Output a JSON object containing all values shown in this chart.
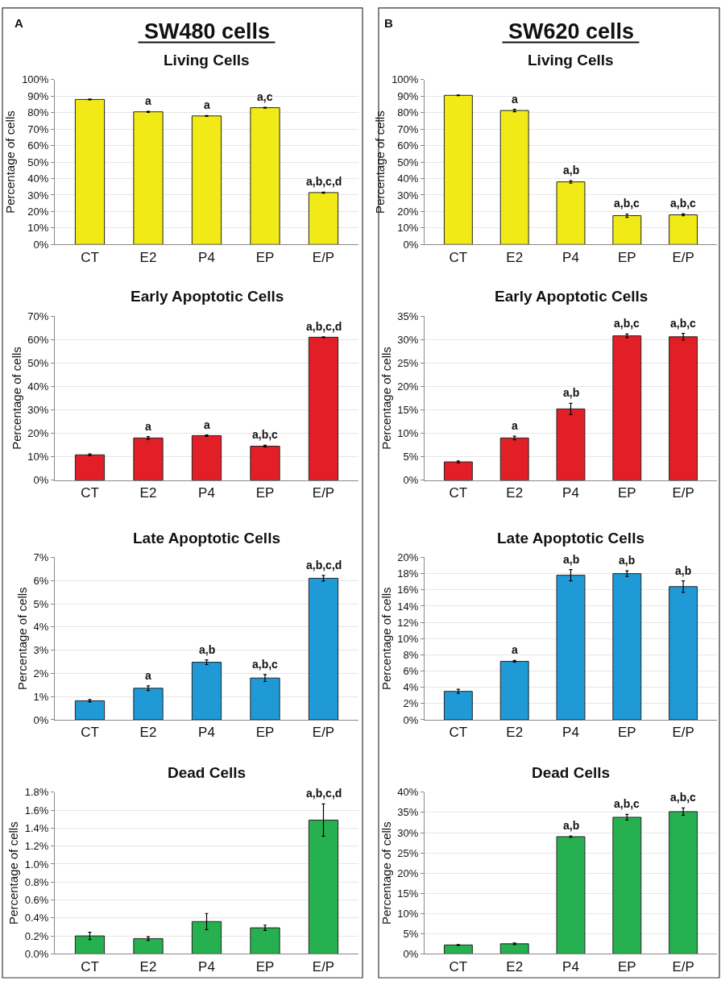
{
  "chart_data": [
    {
      "type": "bar",
      "title": "Living Cells",
      "ylabel": "Percentage of cells",
      "annotations": [
        "A",
        "SW480 cells",
        {
          "text": "a",
          "x": "E2",
          "y": 80.8
        },
        {
          "text": "a",
          "x": "P4",
          "y": 78.3
        },
        {
          "text": "a,c",
          "x": "EP",
          "y": 83.3
        },
        {
          "text": "a,b,c,d",
          "x": "E/P",
          "y": 31.8
        }
      ],
      "categories": [
        "CT",
        "E2",
        "P4",
        "EP",
        "E/P"
      ],
      "values": [
        88,
        80.5,
        78,
        83,
        31.5
      ],
      "errors": [
        0.3,
        0.3,
        0.3,
        0.3,
        0.3
      ],
      "color": "#f2ea16",
      "ylim": [
        0,
        100
      ],
      "yticks": [
        {
          "value": 0,
          "label": "0%"
        },
        {
          "value": 10,
          "label": "10%"
        },
        {
          "value": 20,
          "label": "20%"
        },
        {
          "value": 30,
          "label": "30%"
        },
        {
          "value": 40,
          "label": "40%"
        },
        {
          "value": 50,
          "label": "50%"
        },
        {
          "value": 60,
          "label": "60%"
        },
        {
          "value": 70,
          "label": "70%"
        },
        {
          "value": 80,
          "label": "80%"
        },
        {
          "value": 90,
          "label": "90%"
        },
        {
          "value": 100,
          "label": "100%"
        }
      ],
      "grid": "y"
    },
    {
      "type": "bar",
      "title": "Early Apoptotic Cells",
      "ylabel": "Percentage of cells",
      "annotations": [
        {
          "text": "a",
          "x": "E2",
          "y": 18.6
        },
        {
          "text": "a",
          "x": "P4",
          "y": 19.3
        },
        {
          "text": "a,b,c",
          "x": "EP",
          "y": 14.9
        },
        {
          "text": "a,b,c,d",
          "x": "E/P",
          "y": 61.2
        }
      ],
      "categories": [
        "CT",
        "E2",
        "P4",
        "EP",
        "E/P"
      ],
      "values": [
        10.8,
        18,
        19,
        14.5,
        61
      ],
      "errors": [
        0.4,
        0.6,
        0.3,
        0.4,
        0.2
      ],
      "color": "#e21f26",
      "ylim": [
        0,
        70
      ],
      "yticks": [
        {
          "value": 0,
          "label": "0%"
        },
        {
          "value": 10,
          "label": "10%"
        },
        {
          "value": 20,
          "label": "20%"
        },
        {
          "value": 30,
          "label": "30%"
        },
        {
          "value": 40,
          "label": "40%"
        },
        {
          "value": 50,
          "label": "50%"
        },
        {
          "value": 60,
          "label": "60%"
        },
        {
          "value": 70,
          "label": "70%"
        }
      ],
      "grid": "y"
    },
    {
      "type": "bar",
      "title": "Late Apoptotic Cells",
      "ylabel": "Percentage of cells",
      "annotations": [
        {
          "text": "a",
          "x": "E2",
          "y": 1.46
        },
        {
          "text": "a,b",
          "x": "P4",
          "y": 2.58
        },
        {
          "text": "a,b,c",
          "x": "EP",
          "y": 1.95
        },
        {
          "text": "a,b,c,d",
          "x": "E/P",
          "y": 6.22
        }
      ],
      "categories": [
        "CT",
        "E2",
        "P4",
        "EP",
        "E/P"
      ],
      "values": [
        0.82,
        1.36,
        2.48,
        1.8,
        6.1
      ],
      "errors": [
        0.05,
        0.1,
        0.1,
        0.15,
        0.12
      ],
      "color": "#1f9ad6",
      "ylim": [
        0,
        7
      ],
      "yticks": [
        {
          "value": 0,
          "label": "0%"
        },
        {
          "value": 1,
          "label": "1%"
        },
        {
          "value": 2,
          "label": "2%"
        },
        {
          "value": 3,
          "label": "3%"
        },
        {
          "value": 4,
          "label": "4%"
        },
        {
          "value": 5,
          "label": "5%"
        },
        {
          "value": 6,
          "label": "6%"
        },
        {
          "value": 7,
          "label": "7%"
        }
      ],
      "grid": "y"
    },
    {
      "type": "bar",
      "title": "Dead Cells",
      "ylabel": "Percentage of cells",
      "annotations": [
        {
          "text": "a,b,c,d",
          "x": "E/P",
          "y": 1.67
        }
      ],
      "categories": [
        "CT",
        "E2",
        "P4",
        "EP",
        "E/P"
      ],
      "values": [
        0.2,
        0.17,
        0.36,
        0.29,
        1.49
      ],
      "errors": [
        0.04,
        0.02,
        0.09,
        0.03,
        0.18
      ],
      "color": "#26b04f",
      "ylim": [
        0,
        1.8
      ],
      "yticks": [
        {
          "value": 0,
          "label": "0.0%"
        },
        {
          "value": 0.2,
          "label": "0.2%"
        },
        {
          "value": 0.4,
          "label": "0.4%"
        },
        {
          "value": 0.6,
          "label": "0.6%"
        },
        {
          "value": 0.8,
          "label": "0.8%"
        },
        {
          "value": 1.0,
          "label": "1.0%"
        },
        {
          "value": 1.2,
          "label": "1.2%"
        },
        {
          "value": 1.4,
          "label": "1.4%"
        },
        {
          "value": 1.6,
          "label": "1.6%"
        },
        {
          "value": 1.8,
          "label": "1.8%"
        }
      ],
      "grid": "y"
    },
    {
      "type": "bar",
      "title": "Living Cells",
      "ylabel": "Percentage of cells",
      "annotations": [
        "B",
        "SW620 cells",
        {
          "text": "a",
          "x": "E2",
          "y": 82
        },
        {
          "text": "a,b",
          "x": "P4",
          "y": 38.8
        },
        {
          "text": "a,b,c",
          "x": "EP",
          "y": 18.5
        },
        {
          "text": "a,b,c",
          "x": "E/P",
          "y": 18.6
        }
      ],
      "categories": [
        "CT",
        "E2",
        "P4",
        "EP",
        "E/P"
      ],
      "values": [
        90.5,
        81.3,
        38,
        17.5,
        18
      ],
      "errors": [
        0.2,
        0.7,
        0.8,
        1,
        0.6
      ],
      "color": "#f2ea16",
      "ylim": [
        0,
        100
      ],
      "yticks": [
        {
          "value": 0,
          "label": "0%"
        },
        {
          "value": 10,
          "label": "10%"
        },
        {
          "value": 20,
          "label": "20%"
        },
        {
          "value": 30,
          "label": "30%"
        },
        {
          "value": 40,
          "label": "40%"
        },
        {
          "value": 50,
          "label": "50%"
        },
        {
          "value": 60,
          "label": "60%"
        },
        {
          "value": 70,
          "label": "70%"
        },
        {
          "value": 80,
          "label": "80%"
        },
        {
          "value": 90,
          "label": "90%"
        },
        {
          "value": 100,
          "label": "100%"
        }
      ],
      "grid": "y"
    },
    {
      "type": "bar",
      "title": "Early Apoptotic Cells",
      "ylabel": "Percentage of cells",
      "annotations": [
        {
          "text": "a",
          "x": "E2",
          "y": 9.4
        },
        {
          "text": "a,b",
          "x": "P4",
          "y": 16.4
        },
        {
          "text": "a,b,c",
          "x": "EP",
          "y": 31.2
        },
        {
          "text": "a,b,c",
          "x": "E/P",
          "y": 31.3
        }
      ],
      "categories": [
        "CT",
        "E2",
        "P4",
        "EP",
        "E/P"
      ],
      "values": [
        3.9,
        9,
        15.2,
        30.8,
        30.6
      ],
      "errors": [
        0.2,
        0.4,
        1.2,
        0.4,
        0.7
      ],
      "color": "#e21f26",
      "ylim": [
        0,
        35
      ],
      "yticks": [
        {
          "value": 0,
          "label": "0%"
        },
        {
          "value": 5,
          "label": "5%"
        },
        {
          "value": 10,
          "label": "10%"
        },
        {
          "value": 15,
          "label": "15%"
        },
        {
          "value": 20,
          "label": "20%"
        },
        {
          "value": 25,
          "label": "25%"
        },
        {
          "value": 30,
          "label": "30%"
        },
        {
          "value": 35,
          "label": "35%"
        }
      ],
      "grid": "y"
    },
    {
      "type": "bar",
      "title": "Late Apoptotic Cells",
      "ylabel": "Percentage of cells",
      "annotations": [
        {
          "text": "a",
          "x": "E2",
          "y": 7.35
        },
        {
          "text": "a,b",
          "x": "P4",
          "y": 18.5
        },
        {
          "text": "a,b",
          "x": "EP",
          "y": 18.35
        },
        {
          "text": "a,b",
          "x": "E/P",
          "y": 17.1
        }
      ],
      "categories": [
        "CT",
        "E2",
        "P4",
        "EP",
        "E/P"
      ],
      "values": [
        3.5,
        7.2,
        17.8,
        18,
        16.4
      ],
      "errors": [
        0.25,
        0.1,
        0.7,
        0.35,
        0.7
      ],
      "color": "#1f9ad6",
      "ylim": [
        0,
        20
      ],
      "yticks": [
        {
          "value": 0,
          "label": "0%"
        },
        {
          "value": 2,
          "label": "2%"
        },
        {
          "value": 4,
          "label": "4%"
        },
        {
          "value": 6,
          "label": "6%"
        },
        {
          "value": 8,
          "label": "8%"
        },
        {
          "value": 10,
          "label": "10%"
        },
        {
          "value": 12,
          "label": "12%"
        },
        {
          "value": 14,
          "label": "14%"
        },
        {
          "value": 16,
          "label": "16%"
        },
        {
          "value": 18,
          "label": "18%"
        },
        {
          "value": 20,
          "label": "20%"
        }
      ],
      "grid": "y"
    },
    {
      "type": "bar",
      "title": "Dead Cells",
      "ylabel": "Percentage of cells",
      "annotations": [
        {
          "text": "a,b",
          "x": "P4",
          "y": 29.2
        },
        {
          "text": "a,b,c",
          "x": "EP",
          "y": 34.5
        },
        {
          "text": "a,b,c",
          "x": "E/P",
          "y": 36.1
        }
      ],
      "categories": [
        "CT",
        "E2",
        "P4",
        "EP",
        "E/P"
      ],
      "values": [
        2.2,
        2.5,
        29,
        33.8,
        35.2
      ],
      "errors": [
        0.1,
        0.2,
        0.2,
        0.7,
        0.9
      ],
      "color": "#26b04f",
      "ylim": [
        0,
        40
      ],
      "yticks": [
        {
          "value": 0,
          "label": "0%"
        },
        {
          "value": 5,
          "label": "5%"
        },
        {
          "value": 10,
          "label": "10%"
        },
        {
          "value": 15,
          "label": "15%"
        },
        {
          "value": 20,
          "label": "20%"
        },
        {
          "value": 25,
          "label": "25%"
        },
        {
          "value": 30,
          "label": "30%"
        },
        {
          "value": 35,
          "label": "35%"
        },
        {
          "value": 40,
          "label": "40%"
        }
      ],
      "grid": "y"
    }
  ]
}
